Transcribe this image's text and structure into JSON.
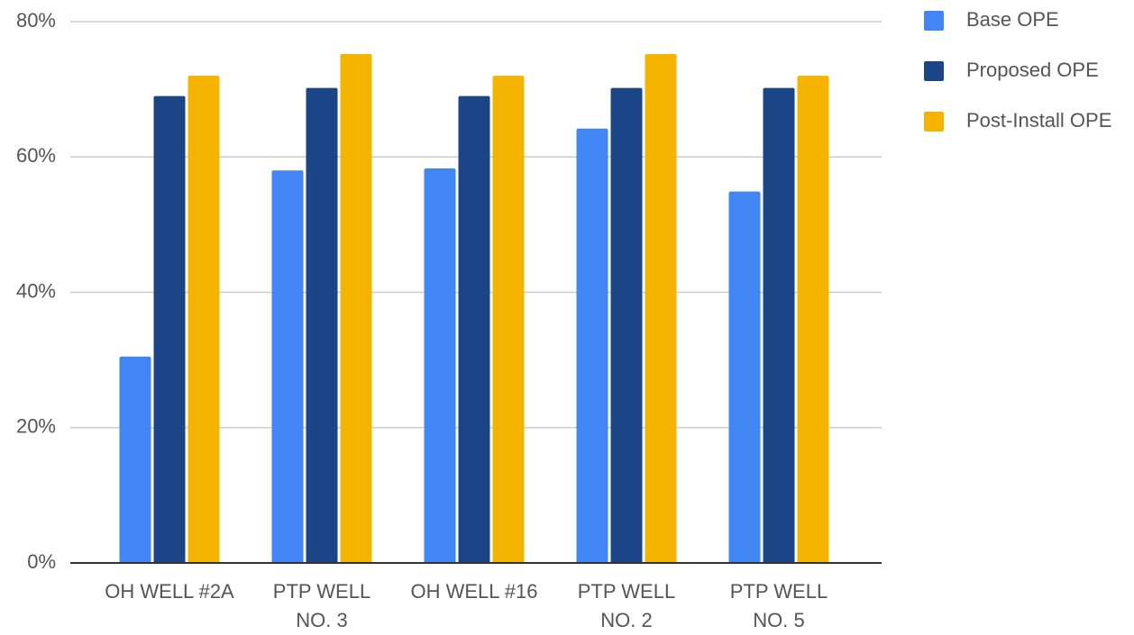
{
  "chart_data": {
    "type": "bar",
    "categories": [
      "OH WELL #2A",
      "PTP WELL NO. 3",
      "OH WELL #16",
      "PTP WELL NO. 2",
      "PTP WELL NO. 5"
    ],
    "series": [
      {
        "name": "Base OPE",
        "color": "#4285f4",
        "values": [
          30.5,
          58.0,
          58.3,
          64.2,
          54.9
        ]
      },
      {
        "name": "Proposed OPE",
        "color": "#1c4587",
        "values": [
          69.0,
          70.2,
          69.0,
          70.2,
          70.2
        ]
      },
      {
        "name": "Post-Install OPE",
        "color": "#f4b400",
        "values": [
          72.0,
          75.2,
          72.0,
          75.2,
          72.0
        ]
      }
    ],
    "ylim": [
      0,
      80
    ],
    "yticks": [
      {
        "value": 0,
        "label": "0%"
      },
      {
        "value": 20,
        "label": "20%"
      },
      {
        "value": 40,
        "label": "40%"
      },
      {
        "value": 60,
        "label": "60%"
      },
      {
        "value": 80,
        "label": "80%"
      }
    ],
    "grid": true,
    "legend": "right"
  }
}
